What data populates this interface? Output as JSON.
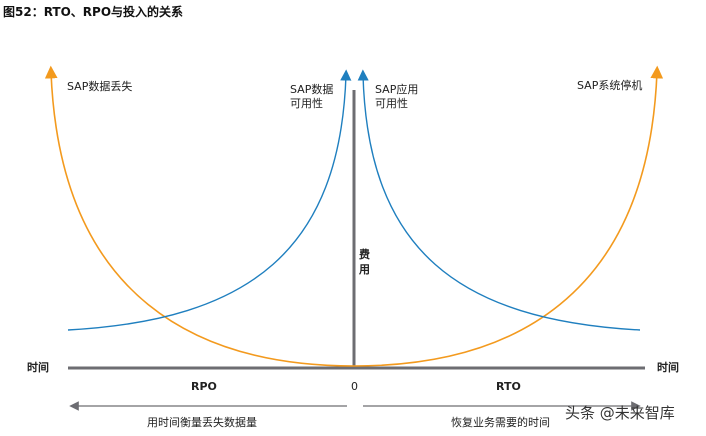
{
  "title": "图52：RTO、RPO与投入的关系",
  "labels": {
    "sap_data_loss": "SAP数据丢失",
    "sap_data_avail_1": "SAP数据",
    "sap_data_avail_2": "可用性",
    "sap_app_avail_1": "SAP应用",
    "sap_app_avail_2": "可用性",
    "sap_downtime": "SAP系统停机",
    "cost_1": "费",
    "cost_2": "用",
    "time_left": "时间",
    "time_right": "时间",
    "rpo": "RPO",
    "zero": "0",
    "rto": "RTO",
    "rpo_desc": "用时间衡量丢失数据量",
    "rto_desc": "恢复业务需要的时间"
  },
  "watermark": "头条 @未来智库",
  "colors": {
    "orange": "#f39a1e",
    "blue": "#1f7fbf",
    "axis": "#6d6d72"
  }
}
